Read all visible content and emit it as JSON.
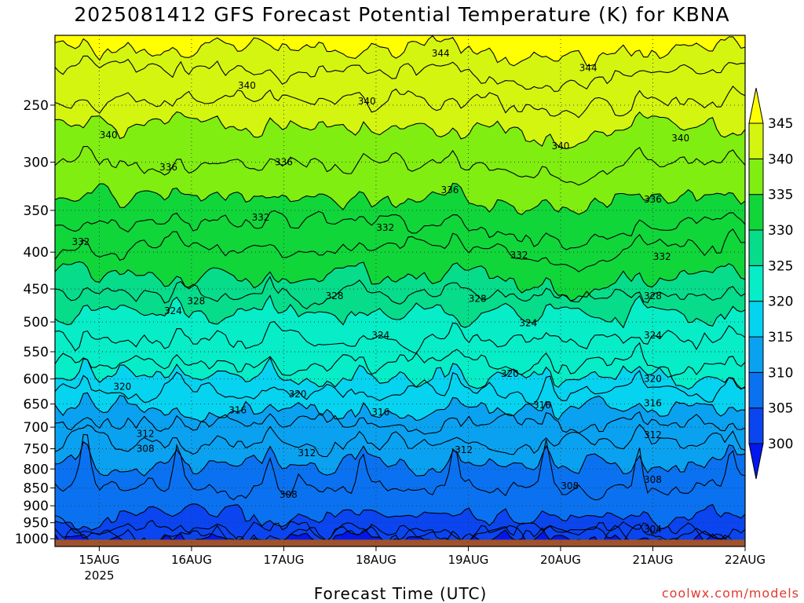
{
  "chart_data": {
    "type": "heatmap",
    "title": "2025081412 GFS Forecast Potential Temperature (K) for KBNA",
    "xlabel": "Forecast Time (UTC)",
    "ylabel": "",
    "y_ticks_hpa": [
      250,
      300,
      350,
      400,
      450,
      500,
      550,
      600,
      650,
      700,
      750,
      800,
      850,
      900,
      950,
      1000
    ],
    "x_ticks": [
      {
        "label": "15AUG",
        "sub": "2025"
      },
      {
        "label": "16AUG",
        "sub": ""
      },
      {
        "label": "17AUG",
        "sub": ""
      },
      {
        "label": "18AUG",
        "sub": ""
      },
      {
        "label": "19AUG",
        "sub": ""
      },
      {
        "label": "20AUG",
        "sub": ""
      },
      {
        "label": "21AUG",
        "sub": ""
      },
      {
        "label": "22AUG",
        "sub": ""
      }
    ],
    "x_range_days": [
      -0.48,
      7.0
    ],
    "y_range_hpa": [
      200,
      1025
    ],
    "y_scale": "log-pressure",
    "grid": true,
    "colorbar": {
      "placement": "right",
      "levels": [
        300,
        305,
        310,
        315,
        320,
        325,
        330,
        335,
        340,
        345
      ],
      "colors": [
        "#0018ee",
        "#0a45f0",
        "#0a72f0",
        "#0aa2f0",
        "#06d3f0",
        "#06edc8",
        "#06dc8a",
        "#10d63a",
        "#80ee10",
        "#d4f510",
        "#ffff00"
      ],
      "under_color": "#0018ee",
      "over_color": "#ffff00"
    },
    "contour_labels": [
      {
        "text": "344",
        "day": 3.7,
        "p": 212
      },
      {
        "text": "344",
        "day": 5.3,
        "p": 222
      },
      {
        "text": "340",
        "day": 1.6,
        "p": 235
      },
      {
        "text": "340",
        "day": 2.9,
        "p": 247
      },
      {
        "text": "340",
        "day": 0.1,
        "p": 275
      },
      {
        "text": "340",
        "day": 5.0,
        "p": 285
      },
      {
        "text": "340",
        "day": 6.3,
        "p": 278
      },
      {
        "text": "336",
        "day": 0.75,
        "p": 305
      },
      {
        "text": "336",
        "day": 2.0,
        "p": 300
      },
      {
        "text": "336",
        "day": 3.8,
        "p": 328
      },
      {
        "text": "336",
        "day": 6.0,
        "p": 338
      },
      {
        "text": "332",
        "day": 1.75,
        "p": 358
      },
      {
        "text": "332",
        "day": 3.1,
        "p": 370
      },
      {
        "text": "332",
        "day": -0.2,
        "p": 387
      },
      {
        "text": "332",
        "day": 4.55,
        "p": 404
      },
      {
        "text": "332",
        "day": 6.1,
        "p": 406
      },
      {
        "text": "328",
        "day": 1.05,
        "p": 468
      },
      {
        "text": "328",
        "day": 2.55,
        "p": 460
      },
      {
        "text": "328",
        "day": 4.1,
        "p": 464
      },
      {
        "text": "328",
        "day": 6.0,
        "p": 460
      },
      {
        "text": "324",
        "day": 0.8,
        "p": 483
      },
      {
        "text": "324",
        "day": 3.05,
        "p": 522
      },
      {
        "text": "324",
        "day": 4.65,
        "p": 502
      },
      {
        "text": "324",
        "day": 6.0,
        "p": 522
      },
      {
        "text": "320",
        "day": 0.25,
        "p": 615
      },
      {
        "text": "320",
        "day": 2.15,
        "p": 630
      },
      {
        "text": "320",
        "day": 4.45,
        "p": 590
      },
      {
        "text": "320",
        "day": 6.0,
        "p": 600
      },
      {
        "text": "316",
        "day": 1.5,
        "p": 663
      },
      {
        "text": "316",
        "day": 3.05,
        "p": 667
      },
      {
        "text": "316",
        "day": 4.8,
        "p": 652
      },
      {
        "text": "316",
        "day": 6.0,
        "p": 648
      },
      {
        "text": "312",
        "day": 0.5,
        "p": 715
      },
      {
        "text": "312",
        "day": 2.25,
        "p": 760
      },
      {
        "text": "312",
        "day": 3.95,
        "p": 753
      },
      {
        "text": "312",
        "day": 6.0,
        "p": 718
      },
      {
        "text": "308",
        "day": 0.5,
        "p": 750
      },
      {
        "text": "308",
        "day": 2.05,
        "p": 868
      },
      {
        "text": "308",
        "day": 5.1,
        "p": 845
      },
      {
        "text": "308",
        "day": 6.0,
        "p": 828
      },
      {
        "text": "304",
        "day": 6.0,
        "p": 970
      }
    ],
    "layers": [
      {
        "theta": 300,
        "base_p": 995,
        "spike": 0
      },
      {
        "theta": 302,
        "base_p": 990,
        "spike": 0
      },
      {
        "theta": 304,
        "base_p": 975,
        "spike": 0
      },
      {
        "theta": 306,
        "base_p": 935,
        "spike": 0
      },
      {
        "theta": 308,
        "base_p": 850,
        "spike": 70
      },
      {
        "theta": 310,
        "base_p": 790,
        "spike": 30
      },
      {
        "theta": 312,
        "base_p": 735,
        "spike": 20
      },
      {
        "theta": 314,
        "base_p": 695,
        "spike": 20
      },
      {
        "theta": 316,
        "base_p": 658,
        "spike": 18
      },
      {
        "theta": 318,
        "base_p": 627,
        "spike": 18
      },
      {
        "theta": 320,
        "base_p": 600,
        "spike": 20
      },
      {
        "theta": 322,
        "base_p": 570,
        "spike": 20
      },
      {
        "theta": 324,
        "base_p": 530,
        "spike": 20
      },
      {
        "theta": 326,
        "base_p": 490,
        "spike": 15
      },
      {
        "theta": 328,
        "base_p": 460,
        "spike": 15
      },
      {
        "theta": 330,
        "base_p": 430,
        "spike": 15
      },
      {
        "theta": 332,
        "base_p": 395,
        "spike": 15
      },
      {
        "theta": 334,
        "base_p": 365,
        "spike": 12
      },
      {
        "theta": 336,
        "base_p": 335,
        "spike": 12
      },
      {
        "theta": 338,
        "base_p": 300,
        "spike": 12
      },
      {
        "theta": 340,
        "base_p": 268,
        "spike": 12
      },
      {
        "theta": 342,
        "base_p": 245,
        "spike": 10
      },
      {
        "theta": 344,
        "base_p": 225,
        "spike": 8
      },
      {
        "theta": 346,
        "base_p": 208,
        "spike": 6
      }
    ]
  },
  "credit": "coolwx.com/models",
  "ground_color": "#a0522d"
}
